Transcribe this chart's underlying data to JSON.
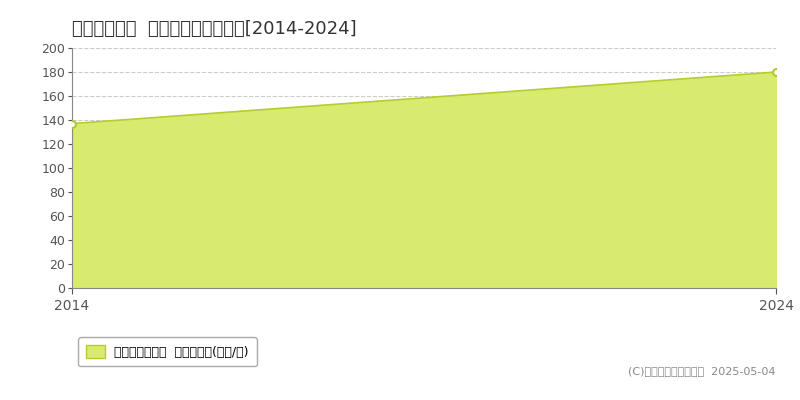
{
  "title": "高槻市野見町  マンション価格推移[2014-2024]",
  "years": [
    2014,
    2024
  ],
  "values": [
    137,
    180
  ],
  "fill_color": "#d8eb6e",
  "fill_alpha": 1.0,
  "line_color": "#b8cc30",
  "marker_color": "#b0c830",
  "marker_face": "white",
  "bg_color": "#ffffff",
  "plot_bg_color": "#ffffff",
  "ylim": [
    0,
    200
  ],
  "yticks": [
    0,
    20,
    40,
    60,
    80,
    100,
    120,
    140,
    160,
    180,
    200
  ],
  "xlim_left": 2014,
  "xlim_right": 2024,
  "xticks": [
    2014,
    2024
  ],
  "grid_color": "#cccccc",
  "grid_style": "--",
  "title_fontsize": 13,
  "legend_label": "マンション価格  平均坪単価(万円/坪)",
  "copyright": "(C)土地価格ドットコム  2025-05-04",
  "axis_color": "#888888",
  "tick_color": "#555555"
}
